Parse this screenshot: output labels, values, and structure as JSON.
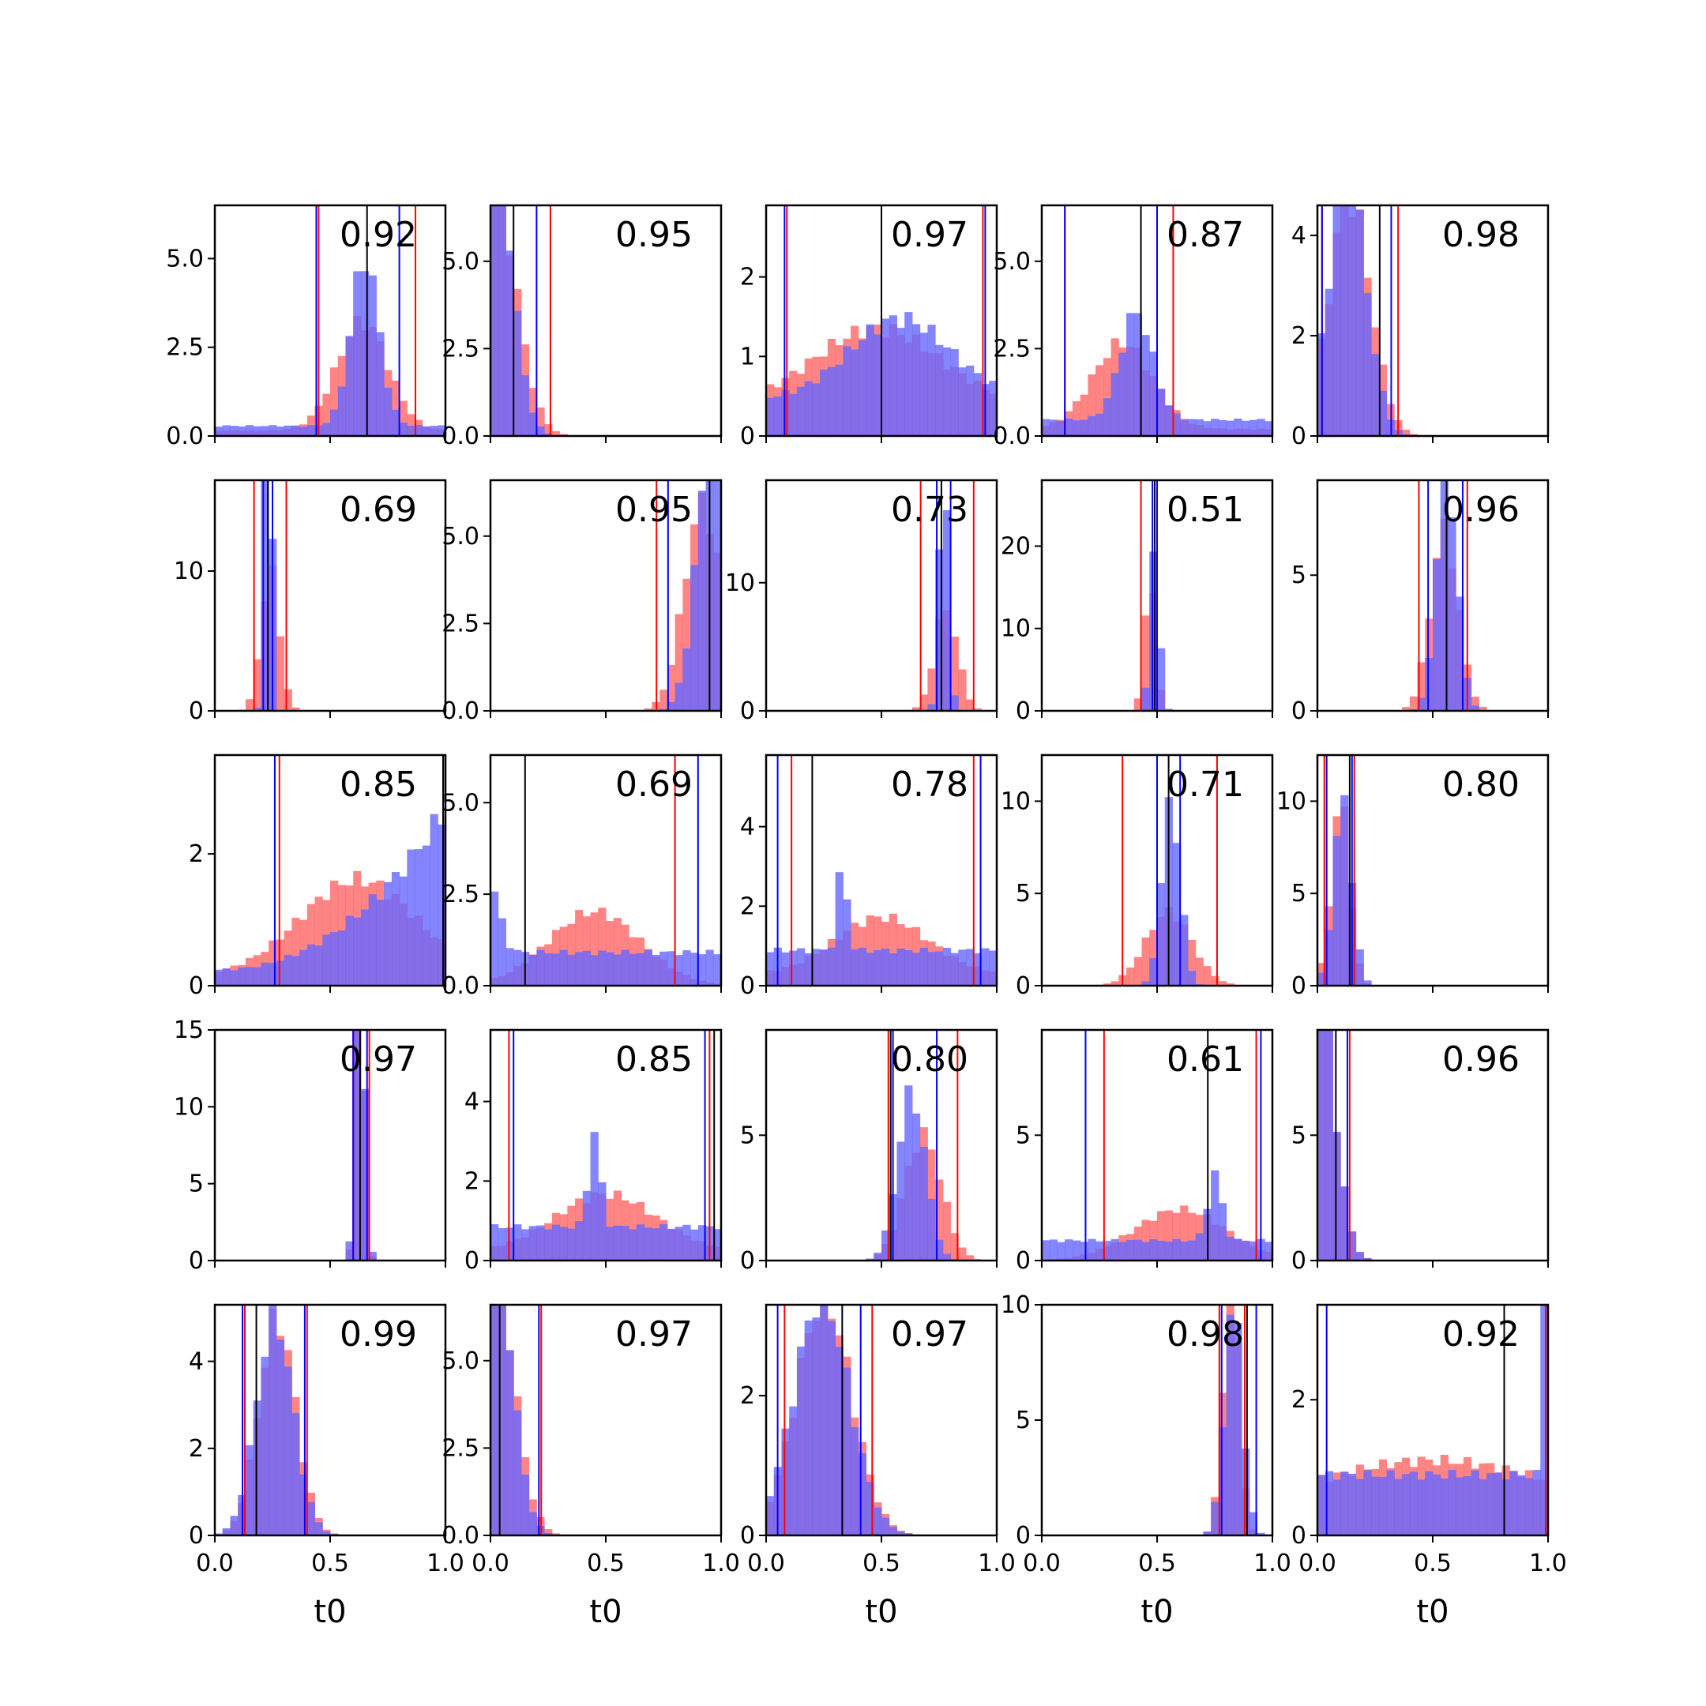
{
  "figure": {
    "colors": {
      "red": "#ff0000",
      "blue": "#0000ff",
      "median": "#000000",
      "red_fill": "#ff6666",
      "blue_fill": "#6666ff",
      "overlap": "#7a3fbf"
    }
  },
  "chart_data": {
    "type": "histogram-grid",
    "rows": 5,
    "cols": 5,
    "xlabel": "t0",
    "xlim": [
      0,
      1
    ],
    "xticks": [
      0.0,
      0.5,
      1.0
    ],
    "xtick_labels": [
      "0.0",
      "0.5",
      "1.0"
    ],
    "panels": [
      {
        "score": "0.92",
        "ylim": [
          0,
          6.5
        ],
        "yticks": [
          0,
          2.5,
          5
        ],
        "ytick_labels": [
          "0.0",
          "2.5",
          "5.0"
        ],
        "red": {
          "dist": "normal",
          "mu": 0.64,
          "sigma": 0.11,
          "bg": 0.05
        },
        "blue": {
          "dist": "normal",
          "mu": 0.65,
          "sigma": 0.06,
          "bg": 0.06
        },
        "lines": {
          "red": [
            0.45,
            0.87
          ],
          "blue": [
            0.44,
            0.8
          ],
          "black": [
            0.66
          ]
        }
      },
      {
        "score": "0.95",
        "ylim": [
          0,
          6.6
        ],
        "yticks": [
          0,
          2.5,
          5
        ],
        "ytick_labels": [
          "0.0",
          "2.5",
          "5.0"
        ],
        "red": {
          "dist": "halfnormal",
          "mu": 0.0,
          "sigma": 0.1,
          "bg": 0.0
        },
        "blue": {
          "dist": "halfnormal",
          "mu": 0.0,
          "sigma": 0.08,
          "bg": 0.0
        },
        "lines": {
          "red": [
            0.26
          ],
          "blue": [
            0.2
          ],
          "black": [
            0.1
          ]
        }
      },
      {
        "score": "0.97",
        "ylim": [
          0,
          2.9
        ],
        "yticks": [
          0,
          1,
          2
        ],
        "ytick_labels": [
          "0",
          "1",
          "2"
        ],
        "red": {
          "dist": "normal",
          "mu": 0.48,
          "sigma": 0.28,
          "bg": 0.35
        },
        "blue": {
          "dist": "normal",
          "mu": 0.58,
          "sigma": 0.22,
          "bg": 0.45
        },
        "lines": {
          "red": [
            0.09,
            0.94
          ],
          "blue": [
            0.08,
            0.95
          ],
          "black": [
            0.5
          ]
        }
      },
      {
        "score": "0.87",
        "ylim": [
          0,
          6.6
        ],
        "yticks": [
          0,
          2.5,
          5
        ],
        "ytick_labels": [
          "0.0",
          "2.5",
          "5.0"
        ],
        "red": {
          "dist": "normal",
          "mu": 0.35,
          "sigma": 0.13,
          "bg": 0.08
        },
        "blue": {
          "dist": "normal",
          "mu": 0.41,
          "sigma": 0.07,
          "bg": 0.15
        },
        "lines": {
          "red": [
            0.1,
            0.57
          ],
          "blue": [
            0.1,
            0.5
          ],
          "black": [
            0.43
          ]
        }
      },
      {
        "score": "0.98",
        "ylim": [
          0,
          4.6
        ],
        "yticks": [
          0,
          2,
          4
        ],
        "ytick_labels": [
          "0",
          "2",
          "4"
        ],
        "red": {
          "dist": "normal",
          "mu": 0.14,
          "sigma": 0.09,
          "bg": 0.0
        },
        "blue": {
          "dist": "normal",
          "mu": 0.13,
          "sigma": 0.08,
          "bg": 0.0
        },
        "lines": {
          "red": [
            0.02,
            0.35
          ],
          "blue": [
            0.02,
            0.32
          ],
          "black": [
            0.27
          ]
        }
      },
      {
        "score": "0.69",
        "ylim": [
          0,
          16.5
        ],
        "yticks": [
          0,
          10
        ],
        "ytick_labels": [
          "0",
          "10"
        ],
        "red": {
          "dist": "normal",
          "mu": 0.24,
          "sigma": 0.04,
          "bg": 0.0
        },
        "blue": {
          "dist": "normal",
          "mu": 0.23,
          "sigma": 0.015,
          "bg": 0.0
        },
        "lines": {
          "red": [
            0.17,
            0.31
          ],
          "blue": [
            0.21,
            0.25
          ],
          "black": [
            0.23
          ]
        }
      },
      {
        "score": "0.95",
        "ylim": [
          0,
          6.6
        ],
        "yticks": [
          0,
          2.5,
          5
        ],
        "ytick_labels": [
          "0.0",
          "2.5",
          "5.0"
        ],
        "red": {
          "dist": "normal",
          "mu": 0.92,
          "sigma": 0.08,
          "bg": 0.0
        },
        "blue": {
          "dist": "normal",
          "mu": 0.97,
          "sigma": 0.07,
          "bg": 0.0
        },
        "lines": {
          "red": [
            0.72
          ],
          "blue": [
            0.77
          ],
          "black": [
            0.95
          ]
        }
      },
      {
        "score": "0.73",
        "ylim": [
          0,
          18
        ],
        "yticks": [
          0,
          10
        ],
        "ytick_labels": [
          "0",
          "10"
        ],
        "red": {
          "dist": "normal",
          "mu": 0.78,
          "sigma": 0.05,
          "bg": 0.0
        },
        "blue": {
          "dist": "normal",
          "mu": 0.77,
          "sigma": 0.02,
          "bg": 0.0
        },
        "lines": {
          "red": [
            0.67,
            0.9
          ],
          "blue": [
            0.74,
            0.8
          ],
          "black": [
            0.76
          ]
        }
      },
      {
        "score": "0.51",
        "ylim": [
          0,
          28
        ],
        "yticks": [
          0,
          10,
          20
        ],
        "ytick_labels": [
          "0",
          "10",
          "20"
        ],
        "red": {
          "dist": "normal",
          "mu": 0.47,
          "sigma": 0.025,
          "bg": 0.0
        },
        "blue": {
          "dist": "normal",
          "mu": 0.49,
          "sigma": 0.02,
          "bg": 0.0
        },
        "lines": {
          "red": [
            0.43,
            0.5
          ],
          "blue": [
            0.48,
            0.5
          ],
          "black": [
            0.49
          ]
        }
      },
      {
        "score": "0.96",
        "ylim": [
          0,
          8.5
        ],
        "yticks": [
          0,
          5
        ],
        "ytick_labels": [
          "0",
          "5"
        ],
        "red": {
          "dist": "normal",
          "mu": 0.55,
          "sigma": 0.06,
          "bg": 0.0
        },
        "blue": {
          "dist": "normal",
          "mu": 0.56,
          "sigma": 0.045,
          "bg": 0.0
        },
        "lines": {
          "red": [
            0.44,
            0.65
          ],
          "blue": [
            0.48,
            0.63
          ],
          "black": [
            0.56
          ]
        }
      },
      {
        "score": "0.85",
        "ylim": [
          0,
          3.5
        ],
        "yticks": [
          0,
          2
        ],
        "ytick_labels": [
          "0",
          "2"
        ],
        "red": {
          "dist": "normal",
          "mu": 0.62,
          "sigma": 0.25,
          "bg": 0.1
        },
        "blue": {
          "dist": "rising",
          "mu": 0.0,
          "sigma": 0.0,
          "bg": 0.1
        },
        "lines": {
          "red": [
            0.28,
            0.99
          ],
          "blue": [
            0.26,
            0.99
          ],
          "black": [
            0.99
          ]
        }
      },
      {
        "score": "0.69",
        "ylim": [
          0,
          6.3
        ],
        "yticks": [
          0,
          2.5,
          5
        ],
        "ytick_labels": [
          "0.0",
          "2.5",
          "5.0"
        ],
        "red": {
          "dist": "normal",
          "mu": 0.45,
          "sigma": 0.2,
          "bg": 0.0
        },
        "blue": {
          "dist": "halfnormal",
          "mu": 0.0,
          "sigma": 0.04,
          "bg": 0.5
        },
        "lines": {
          "red": [
            0.8
          ],
          "blue": [
            0.9
          ],
          "black": [
            0.15
          ]
        }
      },
      {
        "score": "0.78",
        "ylim": [
          0,
          5.8
        ],
        "yticks": [
          0,
          2,
          4
        ],
        "ytick_labels": [
          "0",
          "2",
          "4"
        ],
        "red": {
          "dist": "normal",
          "mu": 0.5,
          "sigma": 0.2,
          "bg": 0.2
        },
        "blue": {
          "dist": "spike",
          "mu": 0.33,
          "sigma": 0.02,
          "bg": 0.4
        },
        "lines": {
          "red": [
            0.11,
            0.9
          ],
          "blue": [
            0.05,
            0.93
          ],
          "black": [
            0.2
          ]
        }
      },
      {
        "score": "0.71",
        "ylim": [
          0,
          12.5
        ],
        "yticks": [
          0,
          5,
          10
        ],
        "ytick_labels": [
          "0",
          "5",
          "10"
        ],
        "red": {
          "dist": "normal",
          "mu": 0.55,
          "sigma": 0.1,
          "bg": 0.0
        },
        "blue": {
          "dist": "normal",
          "mu": 0.56,
          "sigma": 0.04,
          "bg": 0.0
        },
        "lines": {
          "red": [
            0.35,
            0.76
          ],
          "blue": [
            0.5,
            0.6
          ],
          "black": [
            0.55
          ]
        }
      },
      {
        "score": "0.80",
        "ylim": [
          0,
          12.5
        ],
        "yticks": [
          0,
          5,
          10
        ],
        "ytick_labels": [
          "0",
          "5",
          "10"
        ],
        "red": {
          "dist": "normal",
          "mu": 0.1,
          "sigma": 0.04,
          "bg": 0.0
        },
        "blue": {
          "dist": "normal",
          "mu": 0.11,
          "sigma": 0.04,
          "bg": 0.0
        },
        "lines": {
          "red": [
            0.03,
            0.16
          ],
          "blue": [
            0.04,
            0.15
          ],
          "black": [
            0.14
          ]
        }
      },
      {
        "score": "0.97",
        "ylim": [
          0,
          15
        ],
        "yticks": [
          0,
          5,
          10,
          15
        ],
        "ytick_labels": [
          "0",
          "5",
          "10",
          "15"
        ],
        "red": {
          "dist": "normal",
          "mu": 0.63,
          "sigma": 0.018,
          "bg": 0.0
        },
        "blue": {
          "dist": "normal",
          "mu": 0.63,
          "sigma": 0.02,
          "bg": 0.0
        },
        "lines": {
          "red": [
            0.6,
            0.67
          ],
          "blue": [
            0.6,
            0.66
          ],
          "black": [
            0.63
          ]
        }
      },
      {
        "score": "0.85",
        "ylim": [
          0,
          5.8
        ],
        "yticks": [
          0,
          2,
          4
        ],
        "ytick_labels": [
          "0",
          "2",
          "4"
        ],
        "red": {
          "dist": "normal",
          "mu": 0.5,
          "sigma": 0.22,
          "bg": 0.15
        },
        "blue": {
          "dist": "spike",
          "mu": 0.45,
          "sigma": 0.025,
          "bg": 0.35
        },
        "lines": {
          "red": [
            0.08,
            0.95
          ],
          "blue": [
            0.1,
            0.93
          ],
          "black": [
            0.97
          ]
        }
      },
      {
        "score": "0.80",
        "ylim": [
          0,
          9.2
        ],
        "yticks": [
          0,
          5
        ],
        "ytick_labels": [
          "0",
          "5"
        ],
        "red": {
          "dist": "normal",
          "mu": 0.68,
          "sigma": 0.08,
          "bg": 0.0
        },
        "blue": {
          "dist": "normal",
          "mu": 0.63,
          "sigma": 0.06,
          "bg": 0.0
        },
        "lines": {
          "red": [
            0.53,
            0.83
          ],
          "blue": [
            0.55,
            0.74
          ],
          "black": [
            0.54
          ]
        }
      },
      {
        "score": "0.61",
        "ylim": [
          0,
          9.2
        ],
        "yticks": [
          0,
          5
        ],
        "ytick_labels": [
          "0",
          "5"
        ],
        "red": {
          "dist": "normal",
          "mu": 0.6,
          "sigma": 0.2,
          "bg": 0.0
        },
        "blue": {
          "dist": "spike",
          "mu": 0.75,
          "sigma": 0.03,
          "bg": 0.3
        },
        "lines": {
          "red": [
            0.27,
            0.93
          ],
          "blue": [
            0.19,
            0.95
          ],
          "black": [
            0.72
          ]
        }
      },
      {
        "score": "0.96",
        "ylim": [
          0,
          9.2
        ],
        "yticks": [
          0,
          5
        ],
        "ytick_labels": [
          "0",
          "5"
        ],
        "red": {
          "dist": "halfnormal",
          "mu": 0.0,
          "sigma": 0.07,
          "bg": 0.0
        },
        "blue": {
          "dist": "halfnormal",
          "mu": 0.0,
          "sigma": 0.07,
          "bg": 0.0
        },
        "lines": {
          "red": [
            0.14
          ],
          "blue": [
            0.13
          ],
          "black": [
            0.08
          ]
        }
      },
      {
        "score": "0.99",
        "ylim": [
          0,
          5.3
        ],
        "yticks": [
          0,
          2,
          4
        ],
        "ytick_labels": [
          "0",
          "2",
          "4"
        ],
        "red": {
          "dist": "normal",
          "mu": 0.27,
          "sigma": 0.08,
          "bg": 0.0
        },
        "blue": {
          "dist": "normal",
          "mu": 0.26,
          "sigma": 0.08,
          "bg": 0.0
        },
        "lines": {
          "red": [
            0.13,
            0.4
          ],
          "blue": [
            0.12,
            0.39
          ],
          "black": [
            0.18
          ]
        }
      },
      {
        "score": "0.97",
        "ylim": [
          0,
          6.6
        ],
        "yticks": [
          0,
          2.5,
          5
        ],
        "ytick_labels": [
          "0.0",
          "2.5",
          "5.0"
        ],
        "red": {
          "dist": "halfnormal",
          "mu": 0.0,
          "sigma": 0.09,
          "bg": 0.0
        },
        "blue": {
          "dist": "halfnormal",
          "mu": 0.0,
          "sigma": 0.08,
          "bg": 0.0
        },
        "lines": {
          "red": [
            0.22
          ],
          "blue": [
            0.21
          ],
          "black": [
            0.04
          ]
        }
      },
      {
        "score": "0.97",
        "ylim": [
          0,
          3.3
        ],
        "yticks": [
          0,
          2
        ],
        "ytick_labels": [
          "0",
          "2"
        ],
        "red": {
          "dist": "normal",
          "mu": 0.25,
          "sigma": 0.12,
          "bg": 0.0
        },
        "blue": {
          "dist": "normal",
          "mu": 0.24,
          "sigma": 0.12,
          "bg": 0.0
        },
        "lines": {
          "red": [
            0.08,
            0.46
          ],
          "blue": [
            0.05,
            0.41
          ],
          "black": [
            0.33
          ]
        }
      },
      {
        "score": "0.98",
        "ylim": [
          0,
          10
        ],
        "yticks": [
          0,
          5,
          10
        ],
        "ytick_labels": [
          "0",
          "5",
          "10"
        ],
        "red": {
          "dist": "normal",
          "mu": 0.82,
          "sigma": 0.035,
          "bg": 0.0
        },
        "blue": {
          "dist": "normal",
          "mu": 0.83,
          "sigma": 0.04,
          "bg": 0.0
        },
        "lines": {
          "red": [
            0.77,
            0.88
          ],
          "blue": [
            0.78,
            0.93
          ],
          "black": [
            0.89
          ]
        }
      },
      {
        "score": "0.92",
        "ylim": [
          0,
          3.4
        ],
        "yticks": [
          0,
          2
        ],
        "ytick_labels": [
          "0",
          "2"
        ],
        "red": {
          "dist": "normal",
          "mu": 0.5,
          "sigma": 0.5,
          "bg": 0.5
        },
        "blue": {
          "dist": "edges",
          "mu": 0.0,
          "sigma": 0.0,
          "bg": 0.85
        },
        "lines": {
          "red": [
            0.99
          ],
          "blue": [
            0.04
          ],
          "black": [
            0.81
          ]
        }
      }
    ]
  }
}
